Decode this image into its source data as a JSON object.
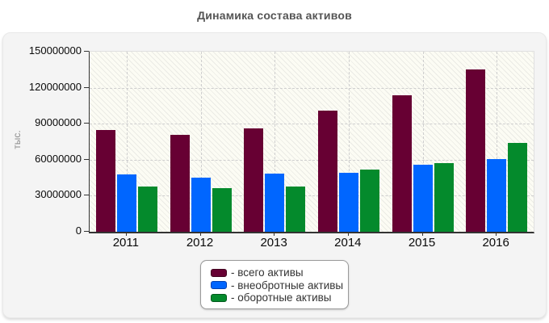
{
  "title": "Динамика состава активов",
  "chart_data": {
    "type": "bar",
    "title": "Динамика состава активов",
    "ylabel": "тыс.",
    "xlabel": "",
    "ylim": [
      0,
      150000000
    ],
    "yticks": [
      0,
      30000000,
      60000000,
      90000000,
      120000000,
      150000000
    ],
    "ytick_labels": [
      "0",
      "30000000",
      "60000000",
      "90000000",
      "120000000",
      "150000000"
    ],
    "grid": "dashed horizontal at yticks and vertical at category centers, hatched plot background",
    "legend_position": "bottom-center",
    "categories": [
      "2011",
      "2012",
      "2013",
      "2014",
      "2015",
      "2016"
    ],
    "series": [
      {
        "name": "- всего активы",
        "color": "#670033",
        "edge_color": "#40001f",
        "values": [
          85000000,
          80500000,
          86000000,
          101000000,
          113500000,
          135000000
        ]
      },
      {
        "name": "- внеобротные активы",
        "color": "#0066ff",
        "edge_color": "#0041b3",
        "values": [
          48000000,
          45000000,
          48500000,
          49200000,
          56000000,
          60500000
        ]
      },
      {
        "name": "- оборотные активы",
        "color": "#048a2c",
        "edge_color": "#02591c",
        "values": [
          37500000,
          36000000,
          38000000,
          51800000,
          57500000,
          74000000
        ]
      }
    ]
  }
}
